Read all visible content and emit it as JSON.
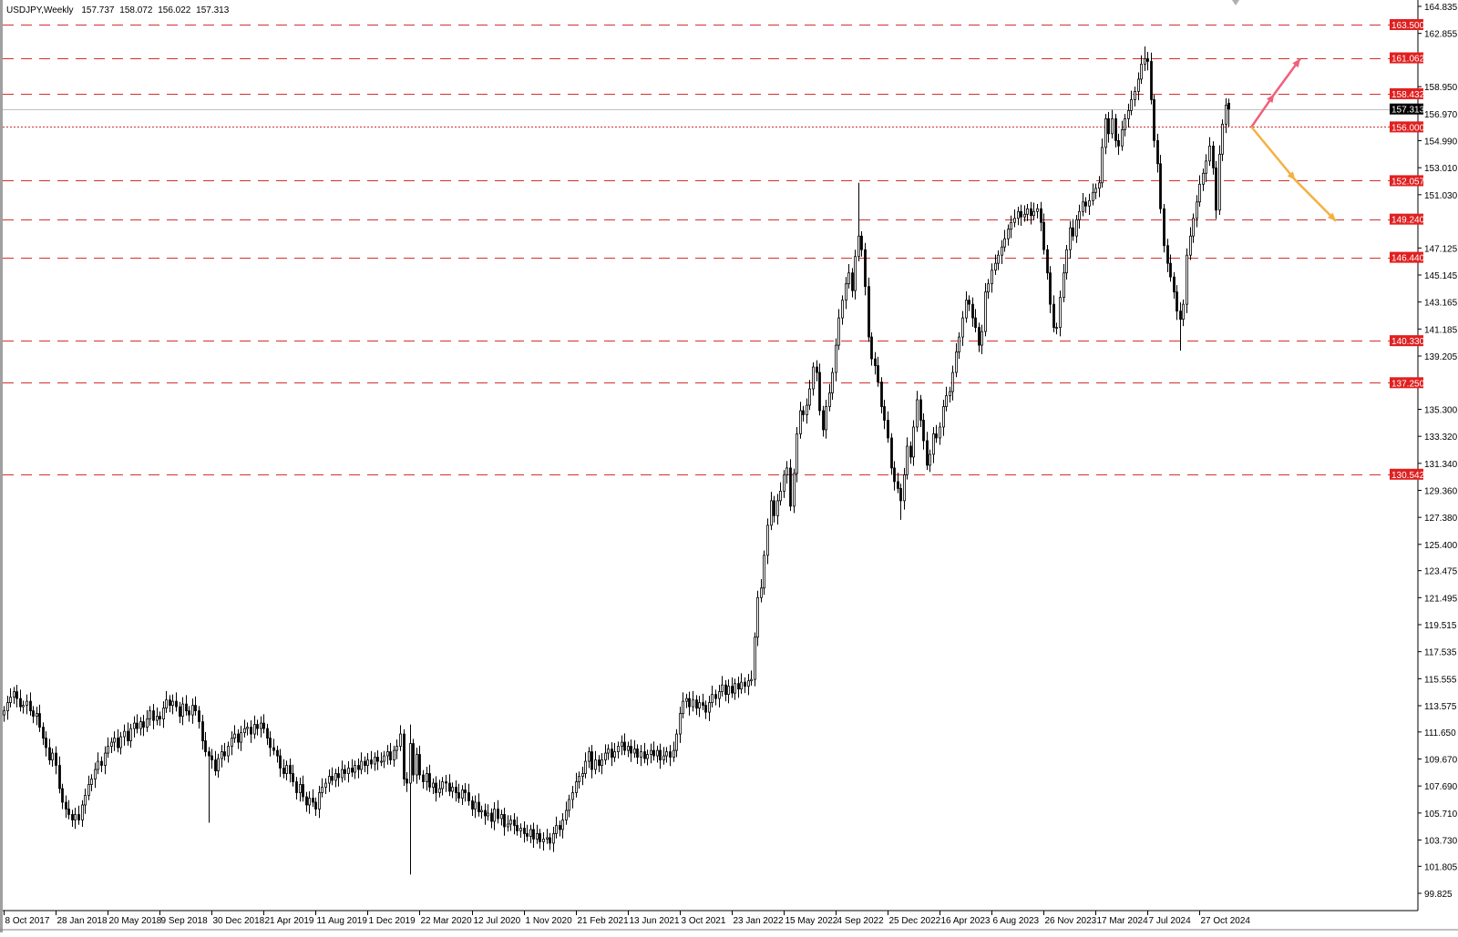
{
  "header": {
    "symbol_timeframe": "USDJPY,Weekly",
    "open": "157.737",
    "high": "158.072",
    "low": "156.022",
    "close": "157.313"
  },
  "chart_data": {
    "type": "candlestick",
    "title": "USDJPY,Weekly",
    "ylim": [
      99.825,
      164.835
    ],
    "y_ticks": [
      "164.835",
      "162.855",
      "158.950",
      "156.970",
      "154.990",
      "153.010",
      "151.030",
      "147.125",
      "145.145",
      "143.165",
      "141.185",
      "139.205",
      "135.300",
      "133.320",
      "131.340",
      "129.360",
      "127.380",
      "125.400",
      "123.475",
      "121.495",
      "119.515",
      "117.535",
      "115.555",
      "113.575",
      "111.650",
      "109.670",
      "107.690",
      "105.710",
      "103.730",
      "101.805",
      "99.825"
    ],
    "x_tick_labels": [
      "8 Oct 2017",
      "28 Jan 2018",
      "20 May 2018",
      "9 Sep 2018",
      "30 Dec 2018",
      "21 Apr 2019",
      "11 Aug 2019",
      "1 Dec 2019",
      "22 Mar 2020",
      "12 Jul 2020",
      "1 Nov 2020",
      "21 Feb 2021",
      "13 Jun 2021",
      "3 Oct 2021",
      "23 Jan 2022",
      "15 May 2022",
      "4 Sep 2022",
      "25 Dec 2022",
      "16 Apr 2023",
      "6 Aug 2023",
      "26 Nov 2023",
      "17 Mar 2024",
      "7 Jul 2024",
      "27 Oct 2024"
    ],
    "x_tick_interval_weeks": 16,
    "weekly_close": [
      113.2,
      113.8,
      114.2,
      114.6,
      114.1,
      113.5,
      113.6,
      113.9,
      113.2,
      112.8,
      113.0,
      112.0,
      111.2,
      110.5,
      109.6,
      110.1,
      109.2,
      107.5,
      106.5,
      106.0,
      105.6,
      105.2,
      105.6,
      105.2,
      106.3,
      107.0,
      107.8,
      108.2,
      108.9,
      109.5,
      109.2,
      110.1,
      110.6,
      110.9,
      111.2,
      110.5,
      111.3,
      111.7,
      111.0,
      111.9,
      112.3,
      111.9,
      112.4,
      112.0,
      112.6,
      113.2,
      112.5,
      112.8,
      112.6,
      113.4,
      114.0,
      113.6,
      113.9,
      113.5,
      112.8,
      113.7,
      113.2,
      112.9,
      113.6,
      113.2,
      112.4,
      111.0,
      110.2,
      109.9,
      109.6,
      108.8,
      109.7,
      110.2,
      109.9,
      110.6,
      111.2,
      111.5,
      110.9,
      111.6,
      111.9,
      112.0,
      111.5,
      112.2,
      111.9,
      112.3,
      111.9,
      111.2,
      110.5,
      110.3,
      109.9,
      109.0,
      108.6,
      109.2,
      108.6,
      108.0,
      107.2,
      107.8,
      106.9,
      106.3,
      106.8,
      106.5,
      106.0,
      107.2,
      107.6,
      107.9,
      108.4,
      108.1,
      108.6,
      108.3,
      108.9,
      108.6,
      109.0,
      108.7,
      109.2,
      108.9,
      109.5,
      109.2,
      109.6,
      109.3,
      109.8,
      109.5,
      109.5,
      109.9,
      110.2,
      109.6,
      110.3,
      110.6,
      111.5,
      108.2,
      107.9,
      110.8,
      108.5,
      110.0,
      108.5,
      108.0,
      108.6,
      107.6,
      107.9,
      107.2,
      107.5,
      108.0,
      107.9,
      107.3,
      107.6,
      107.2,
      106.8,
      107.4,
      107.2,
      106.6,
      106.0,
      106.5,
      105.8,
      105.9,
      105.5,
      105.7,
      105.1,
      106.0,
      105.3,
      105.6,
      104.7,
      104.9,
      105.2,
      104.8,
      104.4,
      104.6,
      104.2,
      104.0,
      104.5,
      103.8,
      104.2,
      103.6,
      103.8,
      103.9,
      103.5,
      104.2,
      104.8,
      104.5,
      105.2,
      105.9,
      106.7,
      107.2,
      108.0,
      108.4,
      108.6,
      109.5,
      110.2,
      108.9,
      109.6,
      109.2,
      109.6,
      110.1,
      110.4,
      109.8,
      110.2,
      110.6,
      110.9,
      110.3,
      110.6,
      110.1,
      110.4,
      109.8,
      110.2,
      109.7,
      110.0,
      110.3,
      109.9,
      110.3,
      109.6,
      109.9,
      110.2,
      109.8,
      110.3,
      111.5,
      113.0,
      113.9,
      114.1,
      113.5,
      114.0,
      113.4,
      113.8,
      113.6,
      113.1,
      113.8,
      114.4,
      114.1,
      114.6,
      115.1,
      114.4,
      115.0,
      114.5,
      115.2,
      114.8,
      115.3,
      115.0,
      115.4,
      115.5,
      118.6,
      121.5,
      122.2,
      124.6,
      126.8,
      128.6,
      127.5,
      128.6,
      129.3,
      130.5,
      131.0,
      128.2,
      130.6,
      133.5,
      135.2,
      134.9,
      135.6,
      136.8,
      138.4,
      138.0,
      135.2,
      133.8,
      135.5,
      136.5,
      138.0,
      140.0,
      142.0,
      143.3,
      144.5,
      145.3,
      144.0,
      146.5,
      148.0,
      147.0,
      144.3,
      140.6,
      139.0,
      138.5,
      137.3,
      135.5,
      134.5,
      133.2,
      131.0,
      130.0,
      129.5,
      128.6,
      130.5,
      132.6,
      131.8,
      134.0,
      136.0,
      134.5,
      133.0,
      131.2,
      132.0,
      133.5,
      133.2,
      134.0,
      135.5,
      136.3,
      136.6,
      138.0,
      139.5,
      140.6,
      142.0,
      143.3,
      143.0,
      142.0,
      141.3,
      140.0,
      141.0,
      143.9,
      144.5,
      145.5,
      146.0,
      146.6,
      147.2,
      147.8,
      148.5,
      149.0,
      149.3,
      149.8,
      149.4,
      149.6,
      150.0,
      149.5,
      149.8,
      150.0,
      149.0,
      147.0,
      145.3,
      143.0,
      141.3,
      141.3,
      143.5,
      145.3,
      147.0,
      148.6,
      148.0,
      149.2,
      149.8,
      150.5,
      150.2,
      150.6,
      151.2,
      151.5,
      151.9,
      154.5,
      156.6,
      155.5,
      156.6,
      155.0,
      154.6,
      155.8,
      156.6,
      157.2,
      158.0,
      158.6,
      159.5,
      160.6,
      161.0,
      160.8,
      158.0,
      155.0,
      153.3,
      150.0,
      147.3,
      146.0,
      145.0,
      143.9,
      142.5,
      141.9,
      143.0,
      146.6,
      148.0,
      149.3,
      150.5,
      151.8,
      152.6,
      153.5,
      154.6,
      153.0,
      149.9,
      154.0,
      156.2,
      157.6,
      157.313
    ],
    "notable_extremes": [
      {
        "week": 63,
        "low": 105.0
      },
      {
        "week": 125,
        "high": 112.2,
        "low": 101.2
      },
      {
        "week": 263,
        "high": 151.9
      },
      {
        "week": 276,
        "low": 127.2
      },
      {
        "week": 351,
        "high": 161.9
      },
      {
        "week": 362,
        "low": 139.6
      },
      {
        "week": 377,
        "open": 157.737,
        "high": 158.072,
        "low": 156.022
      }
    ],
    "levels": [
      {
        "price": "163.500",
        "style": "dashed"
      },
      {
        "price": "161.062",
        "style": "dashed"
      },
      {
        "price": "158.432",
        "style": "dashed"
      },
      {
        "price": "156.000",
        "style": "dotted"
      },
      {
        "price": "152.057",
        "style": "dashed"
      },
      {
        "price": "149.240",
        "style": "dashed"
      },
      {
        "price": "146.440",
        "style": "dashed"
      },
      {
        "price": "140.330",
        "style": "dashed"
      },
      {
        "price": "137.250",
        "style": "dashed"
      },
      {
        "price": "130.542",
        "style": "dashed"
      }
    ],
    "bid_line": "157.313",
    "arrows": [
      {
        "name": "bullish-scenario",
        "color": "#f0607a",
        "points": [
          [
            384,
            156.0
          ],
          [
            391,
            158.4
          ],
          [
            399,
            161.0
          ]
        ]
      },
      {
        "name": "bearish-scenario",
        "color": "#f5b041",
        "points": [
          [
            384,
            156.0
          ],
          [
            397.5,
            152.1
          ],
          [
            410,
            149.1
          ]
        ]
      }
    ],
    "colors": {
      "level": "#d03030",
      "level_label_bg": "#e02020",
      "bid_label_bg": "#000000",
      "candle": "#000000",
      "bid_line": "#c0c0c0"
    }
  }
}
